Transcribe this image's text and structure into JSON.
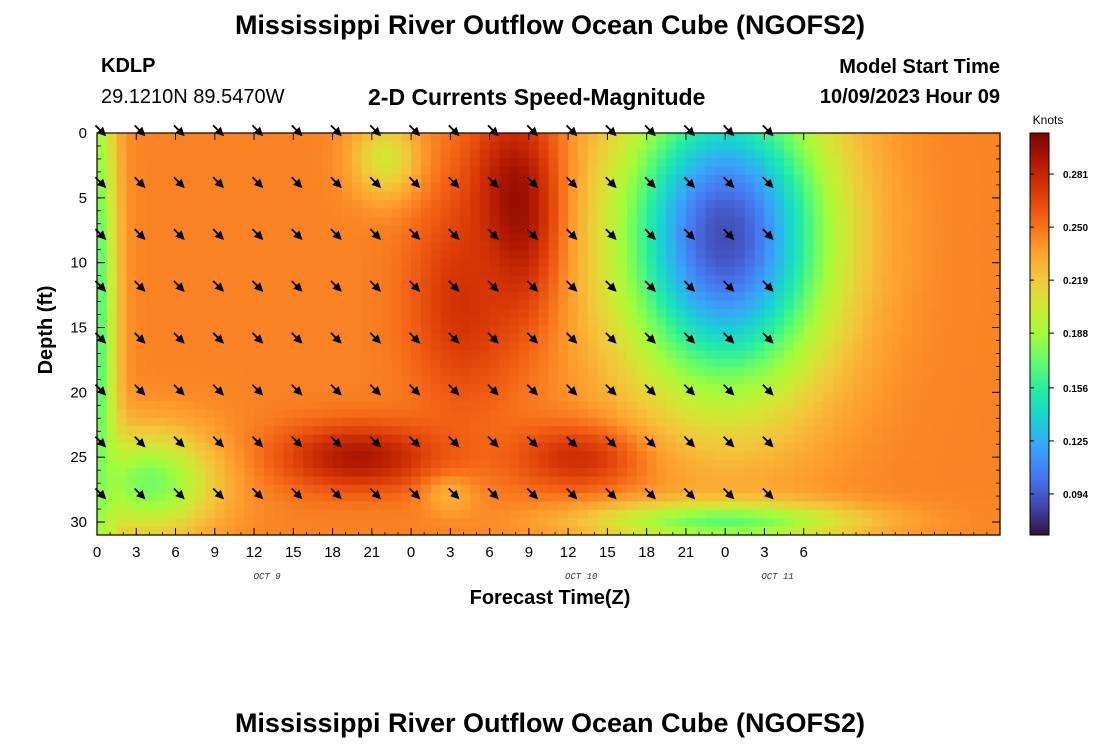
{
  "header": {
    "title": "Mississippi River Outflow Ocean Cube (NGOFS2)",
    "station_id": "KDLP",
    "station_coords": "29.1210N  89.5470W",
    "subtitle": "2-D Currents Speed-Magnitude",
    "model_start_label": "Model Start Time",
    "model_start_value": "10/09/2023 Hour 09"
  },
  "footer": {
    "title": "Mississippi River Outflow Ocean Cube (NGOFS2)"
  },
  "chart_data": {
    "type": "heatmap",
    "title": "2-D Currents Speed-Magnitude",
    "xlabel": "Forecast Time(Z)",
    "ylabel": "Depth (ft)",
    "x_hours_range": [
      0,
      69
    ],
    "y_range": [
      0,
      31
    ],
    "x_ticks": [
      {
        "hour": 0,
        "label": "0"
      },
      {
        "hour": 3,
        "label": "3"
      },
      {
        "hour": 6,
        "label": "6"
      },
      {
        "hour": 9,
        "label": "9"
      },
      {
        "hour": 12,
        "label": "12"
      },
      {
        "hour": 15,
        "label": "15"
      },
      {
        "hour": 18,
        "label": "18"
      },
      {
        "hour": 21,
        "label": "21"
      },
      {
        "hour": 24,
        "label": "0"
      },
      {
        "hour": 27,
        "label": "3"
      },
      {
        "hour": 30,
        "label": "6"
      },
      {
        "hour": 33,
        "label": "9"
      },
      {
        "hour": 36,
        "label": "12"
      },
      {
        "hour": 39,
        "label": "15"
      },
      {
        "hour": 42,
        "label": "18"
      },
      {
        "hour": 45,
        "label": "21"
      },
      {
        "hour": 48,
        "label": "0"
      },
      {
        "hour": 51,
        "label": "3"
      },
      {
        "hour": 54,
        "label": "6"
      }
    ],
    "date_labels": [
      {
        "hour": 13,
        "label": "OCT 9"
      },
      {
        "hour": 37,
        "label": "OCT 10"
      },
      {
        "hour": 52,
        "label": "OCT 11"
      }
    ],
    "y_ticks": [
      0,
      5,
      10,
      15,
      20,
      25,
      30
    ],
    "colorbar": {
      "title": "Knots",
      "ticks": [
        0.094,
        0.125,
        0.156,
        0.188,
        0.219,
        0.25,
        0.281
      ],
      "range": [
        0.07,
        0.305
      ],
      "colors": [
        "#30123b",
        "#4145ab",
        "#4675ed",
        "#39a2fc",
        "#1bcfd4",
        "#24eca6",
        "#61fc6c",
        "#a4fc3b",
        "#d1e834",
        "#f3c63a",
        "#fe9b2d",
        "#f36315",
        "#d93806",
        "#b11901",
        "#7a0402"
      ]
    },
    "arrow_hours": [
      0,
      3,
      6,
      9,
      12,
      15,
      18,
      21,
      24,
      27,
      30,
      33,
      36,
      39,
      42,
      45,
      48,
      51
    ],
    "arrow_depths": [
      0,
      4,
      8,
      12,
      16,
      20,
      24,
      28
    ],
    "current_direction_deg_from_north": 135,
    "speed_features": {
      "background": 0.245,
      "features": [
        {
          "center": [
            32,
            6
          ],
          "spread": [
            3.5,
            8
          ],
          "value": 0.305
        },
        {
          "center": [
            28,
            13
          ],
          "spread": [
            4,
            8
          ],
          "value": 0.275
        },
        {
          "center": [
            20,
            25
          ],
          "spread": [
            6,
            2.5
          ],
          "value": 0.29
        },
        {
          "center": [
            37,
            25
          ],
          "spread": [
            5,
            2.5
          ],
          "value": 0.28
        },
        {
          "center": [
            22,
            2
          ],
          "spread": [
            2.5,
            3
          ],
          "value": 0.205
        },
        {
          "center": [
            0,
            15
          ],
          "spread": [
            1.5,
            25
          ],
          "value": 0.165
        },
        {
          "center": [
            4,
            27
          ],
          "spread": [
            5,
            4
          ],
          "value": 0.175
        },
        {
          "center": [
            27,
            28
          ],
          "spread": [
            2,
            1.5
          ],
          "value": 0.23
        },
        {
          "center": [
            48,
            8
          ],
          "spread": [
            8,
            12
          ],
          "value": 0.09
        },
        {
          "center": [
            48,
            30
          ],
          "spread": [
            10,
            1.5
          ],
          "value": 0.17
        }
      ]
    }
  }
}
